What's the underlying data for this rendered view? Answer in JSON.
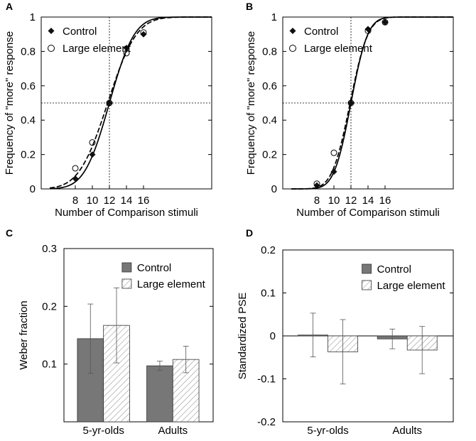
{
  "chart_data": [
    {
      "panel": "A",
      "type": "scatter",
      "title": "",
      "xlabel": "Number of Comparison stimuli",
      "ylabel": "Frequency of \"more\" response",
      "xticks": [
        8,
        10,
        12,
        14,
        16
      ],
      "yticks": [
        0,
        0.2,
        0.4,
        0.6,
        0.8,
        1
      ],
      "ytick_labels": [
        "0",
        "0.2",
        "0.4",
        "0.6",
        "0.8",
        "1"
      ],
      "xlim": [
        4,
        24
      ],
      "ylim": [
        0,
        1
      ],
      "reference": {
        "x": 12,
        "y": 0.5
      },
      "legend": [
        "Control",
        "Large element"
      ],
      "series": [
        {
          "name": "Control",
          "marker": "diamond",
          "points": [
            [
              8,
              0.06
            ],
            [
              10,
              0.2
            ],
            [
              12,
              0.5
            ],
            [
              14,
              0.82
            ],
            [
              16,
              0.9
            ]
          ],
          "fit": {
            "line": "solid",
            "mu": 12.0,
            "sigma": 2.3
          }
        },
        {
          "name": "Large element",
          "marker": "circle",
          "points": [
            [
              8,
              0.12
            ],
            [
              10,
              0.27
            ],
            [
              12,
              0.5
            ],
            [
              14,
              0.79
            ],
            [
              16,
              0.91
            ]
          ],
          "fit": {
            "line": "dashed",
            "mu": 11.8,
            "sigma": 2.65
          }
        }
      ]
    },
    {
      "panel": "B",
      "type": "scatter",
      "title": "",
      "xlabel": "Number of Comparison stimuli",
      "ylabel": "Frequency of \"more\" response",
      "xticks": [
        8,
        10,
        12,
        14,
        16
      ],
      "yticks": [
        0,
        0.2,
        0.4,
        0.6,
        0.8,
        1
      ],
      "ytick_labels": [
        "0",
        "0.2",
        "0.4",
        "0.6",
        "0.8",
        "1"
      ],
      "xlim": [
        4,
        24
      ],
      "ylim": [
        0,
        1
      ],
      "reference": {
        "x": 12,
        "y": 0.5
      },
      "legend": [
        "Control",
        "Large element"
      ],
      "series": [
        {
          "name": "Control",
          "marker": "diamond",
          "points": [
            [
              8,
              0.02
            ],
            [
              10,
              0.1
            ],
            [
              12,
              0.5
            ],
            [
              14,
              0.93
            ],
            [
              16,
              0.97
            ]
          ],
          "fit": {
            "line": "solid",
            "mu": 12.0,
            "sigma": 1.55
          }
        },
        {
          "name": "Large element",
          "marker": "circle",
          "points": [
            [
              8,
              0.03
            ],
            [
              10,
              0.21
            ],
            [
              12,
              0.5
            ],
            [
              14,
              0.92
            ],
            [
              16,
              0.97
            ]
          ],
          "fit": {
            "line": "dashed",
            "mu": 11.9,
            "sigma": 1.65
          }
        }
      ]
    },
    {
      "panel": "C",
      "type": "bar",
      "title": "",
      "xlabel": "",
      "ylabel": "Weber fraction",
      "categories": [
        "5-yr-olds",
        "Adults"
      ],
      "yticks": [
        0.1,
        0.2,
        0.3
      ],
      "ytick_labels": [
        "0.1",
        "0.2",
        "0.3"
      ],
      "ylim": [
        0,
        0.3
      ],
      "legend": [
        "Control",
        "Large element"
      ],
      "series": [
        {
          "name": "Control",
          "fill": "solid",
          "values": [
            0.144,
            0.097
          ],
          "errors": [
            0.06,
            0.008
          ]
        },
        {
          "name": "Large element",
          "fill": "hatched",
          "values": [
            0.167,
            0.108
          ],
          "errors": [
            0.065,
            0.023
          ]
        }
      ]
    },
    {
      "panel": "D",
      "type": "bar",
      "title": "",
      "xlabel": "",
      "ylabel": "Standardized PSE",
      "categories": [
        "5-yr-olds",
        "Adults"
      ],
      "yticks": [
        -0.2,
        -0.1,
        0,
        0.1,
        0.2
      ],
      "ytick_labels": [
        "-0.2",
        "-0.1",
        "0",
        "0.1",
        "0.2"
      ],
      "ylim": [
        -0.2,
        0.2
      ],
      "legend": [
        "Control",
        "Large element"
      ],
      "series": [
        {
          "name": "Control",
          "fill": "solid",
          "values": [
            0.002,
            -0.007
          ],
          "errors": [
            0.051,
            0.023
          ]
        },
        {
          "name": "Large element",
          "fill": "hatched",
          "values": [
            -0.037,
            -0.033
          ],
          "errors": [
            0.075,
            0.055
          ]
        }
      ]
    }
  ],
  "colors": {
    "control_bar": "#777777",
    "hatch": "#999999",
    "axis": "#000000"
  }
}
